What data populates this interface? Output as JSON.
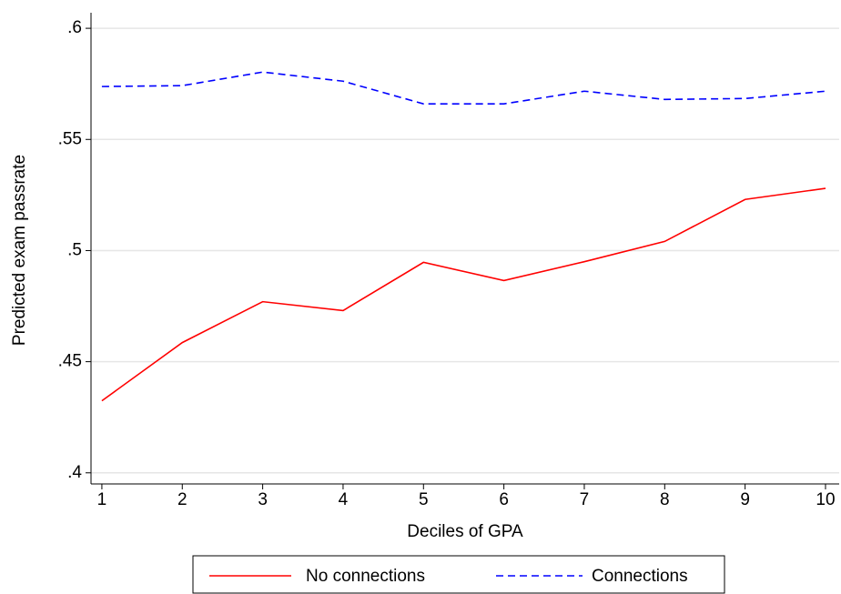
{
  "chart_data": {
    "type": "line",
    "x_label": "Deciles of GPA",
    "y_label": "Predicted exam passrate",
    "x": [
      1,
      2,
      3,
      4,
      5,
      6,
      7,
      8,
      9,
      10
    ],
    "series": [
      {
        "name": "No connections",
        "color": "#ff0000",
        "dashed": false,
        "values": [
          0.4324,
          0.4586,
          0.477,
          0.473,
          0.4947,
          0.4865,
          0.495,
          0.5041,
          0.523,
          0.528
        ]
      },
      {
        "name": "Connections",
        "color": "#0000ff",
        "dashed": true,
        "values": [
          0.5738,
          0.5742,
          0.5803,
          0.5762,
          0.566,
          0.566,
          0.5717,
          0.568,
          0.5684,
          0.5717
        ]
      }
    ],
    "xlim": [
      0.865,
      10.17
    ],
    "xticks": [
      1,
      2,
      3,
      4,
      5,
      6,
      7,
      8,
      9,
      10
    ],
    "ylim": [
      0.395,
      0.607
    ],
    "yticks": [
      {
        "value": 0.4,
        "label": ".4"
      },
      {
        "value": 0.45,
        "label": ".45"
      },
      {
        "value": 0.5,
        "label": ".5"
      },
      {
        "value": 0.55,
        "label": ".55"
      },
      {
        "value": 0.6,
        "label": ".6"
      }
    ],
    "grid": true,
    "legend": "bottom"
  }
}
